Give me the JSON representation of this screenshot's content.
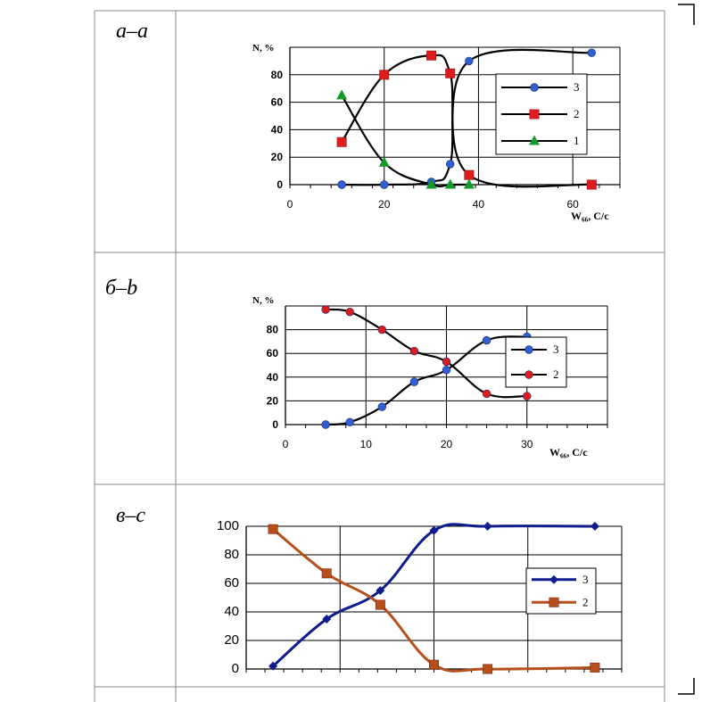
{
  "panels": [
    {
      "label": "а–а"
    },
    {
      "label": "б–b"
    },
    {
      "label": "в–с"
    }
  ],
  "chart_data": [
    {
      "type": "line",
      "ylabel": "N, %",
      "xlabel": "W₆₆, С/с",
      "xlim": [
        0,
        70
      ],
      "ylim": [
        0,
        100
      ],
      "x_ticks": [
        0,
        20,
        40,
        60
      ],
      "y_ticks": [
        0,
        20,
        40,
        60,
        80
      ],
      "grid": true,
      "legend_position": "right",
      "series": [
        {
          "name": "3",
          "color": "#2f5fd0",
          "marker": "circle",
          "x": [
            11,
            20,
            30,
            34,
            38,
            64
          ],
          "y": [
            0,
            0,
            2,
            15,
            90,
            96
          ]
        },
        {
          "name": "2",
          "color": "#e01b1b",
          "marker": "square",
          "x": [
            11,
            20,
            30,
            34,
            38,
            64
          ],
          "y": [
            31,
            80,
            94,
            81,
            7,
            0
          ]
        },
        {
          "name": "1",
          "color": "#159a2a",
          "marker": "triangle",
          "x": [
            11,
            20,
            30,
            34,
            38
          ],
          "y": [
            65,
            16,
            0,
            0,
            0
          ]
        }
      ]
    },
    {
      "type": "line",
      "ylabel": "N, %",
      "xlabel": "W₆₆, С/с",
      "xlim": [
        0,
        40
      ],
      "ylim": [
        0,
        100
      ],
      "x_ticks": [
        0,
        10,
        20,
        30
      ],
      "y_ticks": [
        0,
        20,
        40,
        60,
        80
      ],
      "grid": true,
      "legend_position": "right",
      "series": [
        {
          "name": "3",
          "color": "#2f5fd0",
          "marker": "circle",
          "x": [
            5,
            8,
            12,
            16,
            20,
            25,
            30
          ],
          "y": [
            0,
            2,
            15,
            36,
            46,
            71,
            74
          ]
        },
        {
          "name": "2",
          "color": "#e01b1b",
          "marker": "circle",
          "x": [
            5,
            8,
            12,
            16,
            20,
            25,
            30
          ],
          "y": [
            97,
            95,
            80,
            62,
            53,
            26,
            24
          ]
        }
      ]
    },
    {
      "type": "line",
      "ylabel": "",
      "xlabel": "",
      "xlim": [
        0,
        7
      ],
      "ylim": [
        0,
        100
      ],
      "x_ticks": [],
      "y_ticks": [
        0,
        20,
        40,
        60,
        80,
        100
      ],
      "grid": true,
      "legend_position": "right",
      "series": [
        {
          "name": "3",
          "color": "#0f1c8c",
          "marker": "diamond",
          "x": [
            0.5,
            1.5,
            2.5,
            3.5,
            4.5,
            6.5
          ],
          "y": [
            2,
            35,
            55,
            97,
            100,
            100
          ]
        },
        {
          "name": "2",
          "color": "#b5501c",
          "marker": "square",
          "x": [
            0.5,
            1.5,
            2.5,
            3.5,
            4.5,
            6.5
          ],
          "y": [
            98,
            67,
            45,
            3,
            0,
            1
          ]
        }
      ]
    }
  ]
}
